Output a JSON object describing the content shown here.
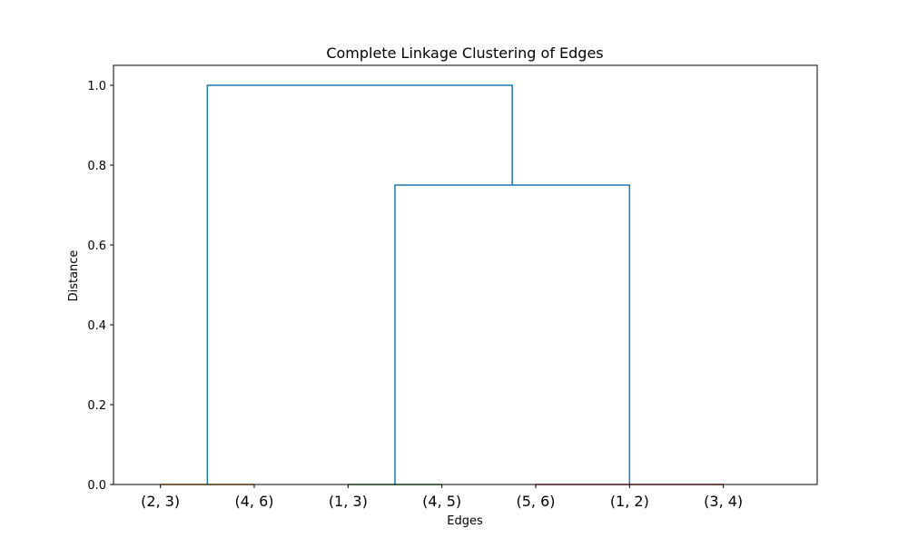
{
  "chart_data": {
    "type": "dendrogram",
    "title": "Complete Linkage Clustering of Edges",
    "xlabel": "Edges",
    "ylabel": "Distance",
    "leaves": [
      "(2, 3)",
      "(4, 6)",
      "(1, 3)",
      "(4, 5)",
      "(5, 6)",
      "(1, 2)",
      "(3, 4)"
    ],
    "ylim": [
      0,
      1.05
    ],
    "yticks": [
      "0.0",
      "0.2",
      "0.4",
      "0.6",
      "0.8",
      "1.0"
    ],
    "merges": [
      {
        "left": "(2, 3)",
        "right": "(4, 6)",
        "height": 0.0,
        "color": "#ff7f0e"
      },
      {
        "left": "(1, 3)",
        "right": "(4, 5)",
        "height": 0.0,
        "color": "#2ca02c"
      },
      {
        "left": "(5, 6)",
        "right": "(1, 2)",
        "height": 0.0,
        "color": "#d62728"
      },
      {
        "left": "(1, 2)",
        "right": "(3, 4)",
        "height": 0.0,
        "color": "#d62728"
      },
      {
        "left": "{(1, 3), (4, 5)}",
        "right": "{(5, 6), (1, 2), (3, 4)}",
        "height": 0.75,
        "color": "#1f77b4"
      },
      {
        "left": "{(2, 3), (4, 6)}",
        "right": "{(1, 3), (4, 5), (5, 6), (1, 2), (3, 4)}",
        "height": 1.0,
        "color": "#1f77b4"
      }
    ],
    "colors": {
      "orange": "#ff7f0e",
      "green": "#2ca02c",
      "red": "#d62728",
      "above_threshold": "#1f77b4"
    },
    "grid": false
  }
}
